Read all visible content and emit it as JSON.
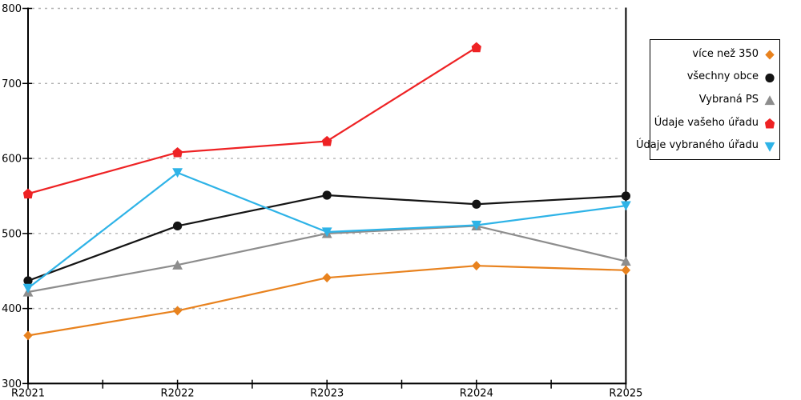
{
  "chart_data": {
    "type": "line",
    "title": "",
    "xlabel": "",
    "ylabel": "",
    "categories": [
      "R2021",
      "R2022",
      "R2023",
      "R2024",
      "R2025"
    ],
    "series": [
      {
        "name": "více než 350",
        "color": "#E8821E",
        "marker": "diamond",
        "values": [
          364,
          397,
          441,
          457,
          451
        ]
      },
      {
        "name": "všechny obce",
        "color": "#141414",
        "marker": "circle",
        "values": [
          437,
          510,
          551,
          539,
          550
        ]
      },
      {
        "name": "Vybraná PS",
        "color": "#8D8D8D",
        "marker": "triangle-up",
        "values": [
          422,
          458,
          500,
          510,
          463
        ]
      },
      {
        "name": "Údaje vašeho úřadu",
        "color": "#EE2224",
        "marker": "pentagon",
        "values": [
          553,
          608,
          623,
          748,
          null
        ]
      },
      {
        "name": "Údaje vybraného úřadu",
        "color": "#2EB3E7",
        "marker": "triangle-down",
        "values": [
          427,
          581,
          502,
          511,
          537
        ]
      }
    ],
    "ylim": [
      300,
      800
    ],
    "ytick_step": 100,
    "yticks": [
      300,
      400,
      500,
      600,
      700,
      800
    ],
    "grid": "horizontal-dashed",
    "gridline_color": "#b3b3b3",
    "axis_color": "#000000",
    "legend_position": "right"
  }
}
